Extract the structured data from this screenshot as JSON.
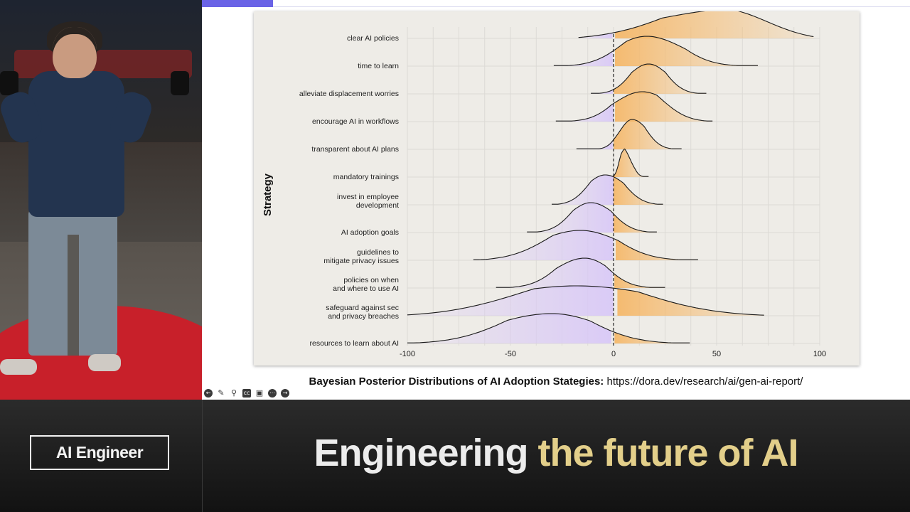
{
  "banner": {
    "logo_text": "AI Engineer",
    "tagline_part1": "Engineering",
    "tagline_part2": "the future of AI",
    "tagline_accent_color": "#e3cf8a"
  },
  "slide": {
    "caption_bold": "Bayesian Posterior Distributions of AI Adoption Stategies:",
    "caption_link": "https://dora.dev/research/ai/gen-ai-report/",
    "progress_fraction": 0.1
  },
  "player_controls": [
    "left-arrow-icon",
    "pencil-icon",
    "magnifier-icon",
    "captions-icon",
    "camera-icon",
    "more-icon",
    "right-arrow-icon"
  ],
  "chart_data": {
    "type": "ridgeline",
    "ylabel": "Strategy",
    "xlabel": "",
    "xlim": [
      -100,
      100
    ],
    "x_ticks": [
      -100,
      -50,
      0,
      50,
      100
    ],
    "reference_line": 0,
    "grid": true,
    "negative_color": "#d9c9f7",
    "positive_color": "#f5b86a",
    "series": [
      {
        "label": "clear AI policies",
        "min": -17,
        "peak": 63,
        "max": 97,
        "spread_left": 45,
        "spread_right": 25
      },
      {
        "label": "time to learn",
        "min": -29,
        "peak": 16,
        "max": 70,
        "spread_left": 16,
        "spread_right": 18
      },
      {
        "label": "alleviate displacement worries",
        "min": -11,
        "peak": 17,
        "max": 45,
        "spread_left": 10,
        "spread_right": 10
      },
      {
        "label": "encourage AI in workflows",
        "min": -28,
        "peak": 14,
        "max": 48,
        "spread_left": 14,
        "spread_right": 14
      },
      {
        "label": "transparent about AI plans",
        "min": -18,
        "peak": 9,
        "max": 33,
        "spread_left": 6,
        "spread_right": 8
      },
      {
        "label": "mandatory trainings",
        "min": -1,
        "peak": 4,
        "max": 17,
        "spread_left": 2,
        "spread_right": 4
      },
      {
        "label": "invest in employee\ndevelopment",
        "min": -30,
        "peak": -4,
        "max": 24,
        "spread_left": 10,
        "spread_right": 11
      },
      {
        "label": "AI adoption goals",
        "min": -42,
        "peak": -11,
        "max": 21,
        "spread_left": 11,
        "spread_right": 12
      },
      {
        "label": "guidelines to\nmitigate privacy issues",
        "min": -68,
        "peak": -16,
        "max": 41,
        "spread_left": 22,
        "spread_right": 20
      },
      {
        "label": "policies on when\nand where to use AI",
        "min": -57,
        "peak": -14,
        "max": 25,
        "spread_left": 15,
        "spread_right": 13
      },
      {
        "label": "safeguard against sec\nand privacy breaches",
        "min": -100,
        "peak": -18,
        "max": 73,
        "spread_left": 45,
        "spread_right": 45
      },
      {
        "label": "resources to learn about AI",
        "min": -100,
        "peak": -30,
        "max": 37,
        "spread_left": 30,
        "spread_right": 25
      }
    ]
  }
}
